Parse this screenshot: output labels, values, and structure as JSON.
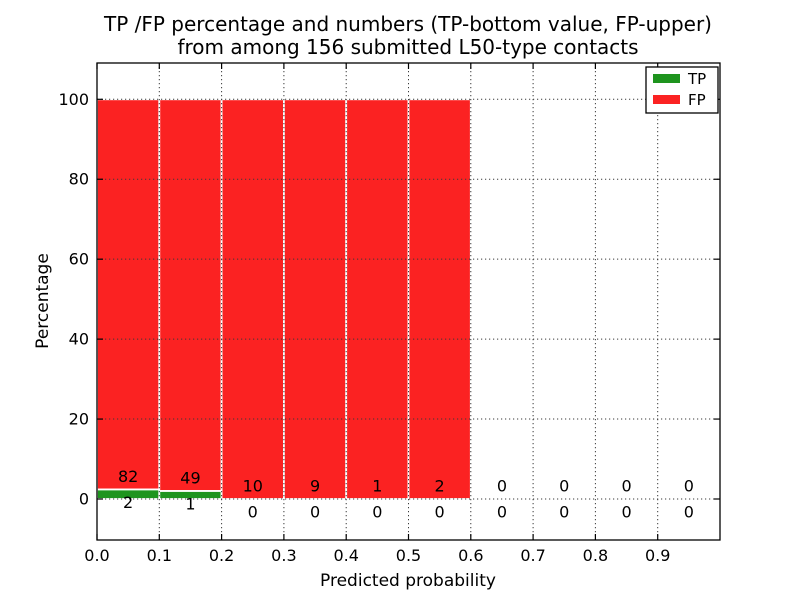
{
  "chart_data": {
    "type": "bar",
    "stacked": true,
    "normalized_to": 100,
    "title_line1": "TP /FP percentage and numbers (TP-bottom value, FP-upper)",
    "title_line2": "from among 156 submitted L50-type contacts",
    "title": "TP /FP percentage and numbers (TP-bottom value, FP-upper)\nfrom among 156 submitted L50-type contacts",
    "total_contacts": 156,
    "xlabel": "Predicted probability",
    "ylabel": "Percentage",
    "xlim": [
      0.0,
      1.0
    ],
    "ylim": [
      -10.3,
      109.2
    ],
    "bin_width": 0.1,
    "bin_starts": [
      0.0,
      0.1,
      0.2,
      0.3,
      0.4,
      0.5,
      0.6,
      0.7,
      0.8,
      0.9
    ],
    "xticks": [
      0.0,
      0.1,
      0.2,
      0.3,
      0.4,
      0.5,
      0.6,
      0.7,
      0.8,
      0.9
    ],
    "xtick_labels": [
      "0.0",
      "0.1",
      "0.2",
      "0.3",
      "0.4",
      "0.5",
      "0.6",
      "0.7",
      "0.8",
      "0.9"
    ],
    "yticks": [
      0,
      20,
      40,
      60,
      80,
      100
    ],
    "ytick_labels": [
      "0",
      "20",
      "40",
      "60",
      "80",
      "100"
    ],
    "grid": "dotted",
    "legend": {
      "position": "upper right",
      "entries": [
        "TP",
        "FP"
      ]
    },
    "series": [
      {
        "name": "TP",
        "color": "#1e941e",
        "counts": [
          2,
          1,
          0,
          0,
          0,
          0,
          0,
          0,
          0,
          0
        ]
      },
      {
        "name": "FP",
        "color": "#fb2222",
        "counts": [
          82,
          49,
          10,
          9,
          1,
          2,
          0,
          0,
          0,
          0
        ]
      }
    ],
    "label_note": "FP count printed above zero line, TP count printed below zero line, per bin"
  }
}
